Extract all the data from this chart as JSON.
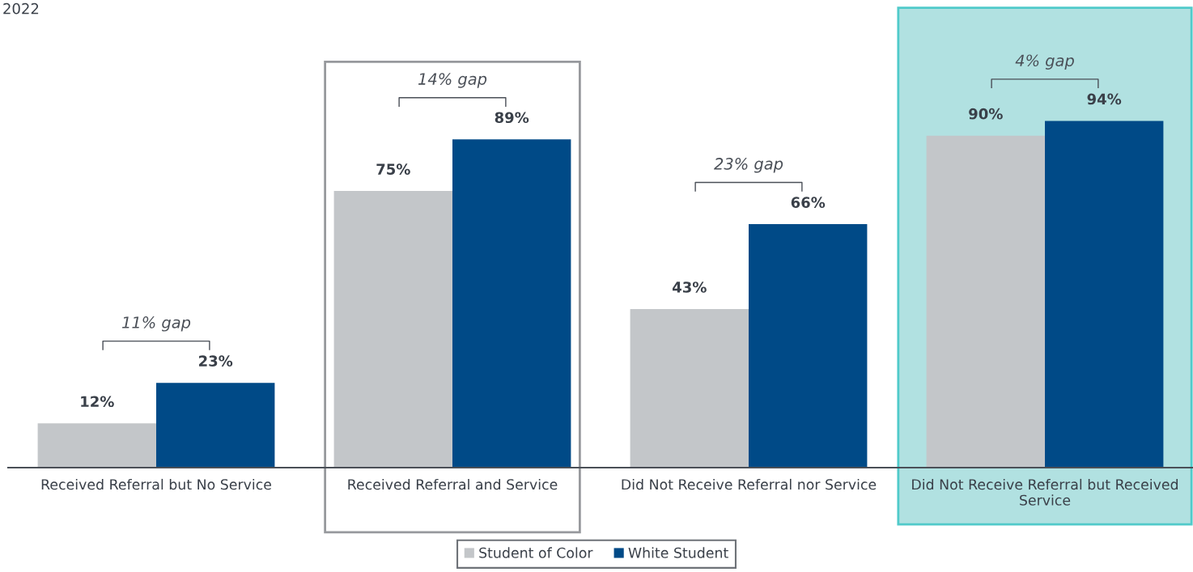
{
  "chart_data": {
    "type": "bar",
    "title": "2022",
    "categories": [
      "Received Referral but No Service",
      "Received Referral and Service",
      "Did Not Receive Referral nor Service",
      "Did Not Receive Referral but Received\nService"
    ],
    "series": [
      {
        "name": "Student of Color",
        "color": "#c3c6c9",
        "values": [
          12,
          75,
          43,
          90
        ],
        "value_labels": [
          "12%",
          "75%",
          "43%",
          "90%"
        ]
      },
      {
        "name": "White Student",
        "color": "#004a87",
        "values": [
          23,
          89,
          66,
          94
        ],
        "value_labels": [
          "23%",
          "89%",
          "66%",
          "94%"
        ]
      }
    ],
    "tick_labels": "x",
    "grid": false,
    "legend": "bottom",
    "annotations": [
      "11% gap",
      "14% gap",
      "23% gap",
      "4% gap"
    ],
    "bands": [
      {
        "axis": "x",
        "from": "Did Not Receive Referral but Received\nService",
        "to": "Did Not Receive Referral but Received\nService",
        "color": "#b1e1e1"
      }
    ]
  }
}
